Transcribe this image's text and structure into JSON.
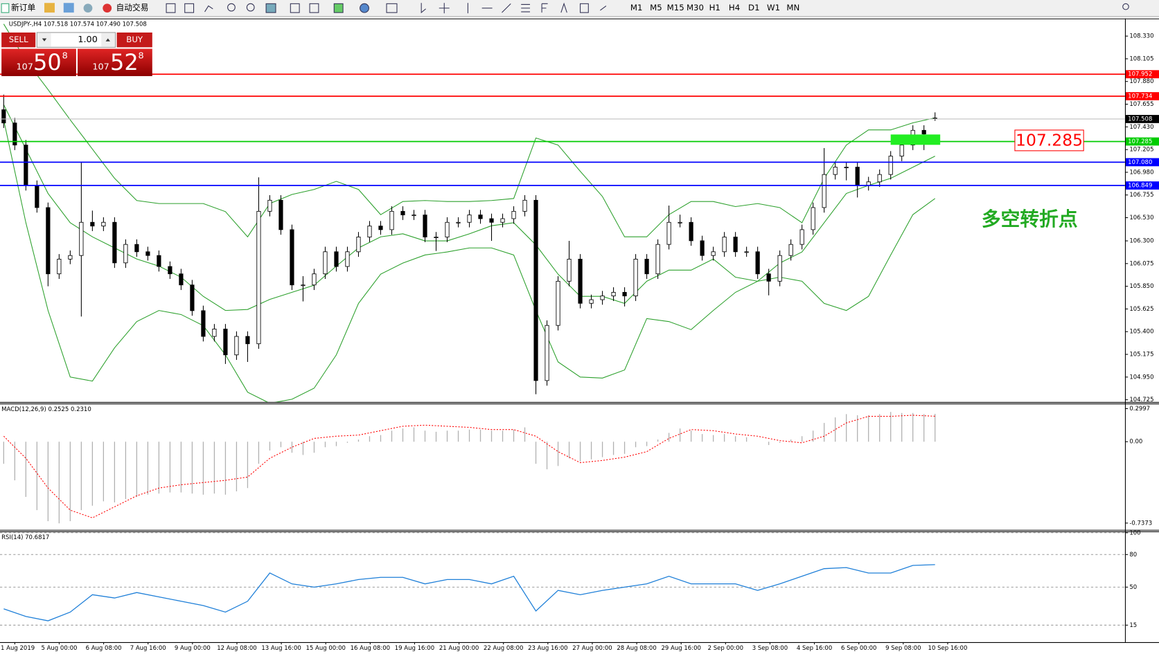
{
  "toolbar": {
    "new_order": "新订单",
    "auto_trading": "自动交易",
    "timeframes": [
      "M1",
      "M5",
      "M15",
      "M30",
      "H1",
      "H4",
      "D1",
      "W1",
      "MN"
    ]
  },
  "trade_panel": {
    "sell": "SELL",
    "buy": "BUY",
    "lots": "1.00",
    "sell_price": {
      "big": "107",
      "pips": "50",
      "point": "8"
    },
    "buy_price": {
      "big": "107",
      "pips": "52",
      "point": "8"
    }
  },
  "time_axis": {
    "labels": [
      "1 Aug 2019",
      "5 Aug 00:00",
      "6 Aug 08:00",
      "7 Aug 16:00",
      "9 Aug 00:00",
      "12 Aug 08:00",
      "13 Aug 16:00",
      "15 Aug 00:00",
      "16 Aug 08:00",
      "19 Aug 16:00",
      "21 Aug 00:00",
      "22 Aug 08:00",
      "23 Aug 16:00",
      "27 Aug 00:00",
      "28 Aug 08:00",
      "29 Aug 16:00",
      "2 Sep 00:00",
      "3 Sep 08:00",
      "4 Sep 16:00",
      "6 Sep 00:00",
      "9 Sep 08:00",
      "10 Sep 16:00"
    ]
  },
  "chart_data": [
    {
      "type": "candlestick",
      "title": "USDJPY-,H4 107.518 107.574 107.490 107.508",
      "ylim": [
        104.71,
        108.49
      ],
      "yticks": [
        {
          "value": 108.33,
          "label": "108.330"
        },
        108.105,
        {
          "value": 107.88,
          "label": "107.880"
        },
        107.655,
        {
          "value": 107.43,
          "label": "107.430"
        },
        107.205,
        {
          "value": 106.98,
          "label": "106.980"
        },
        106.755,
        {
          "value": 106.53,
          "label": "106.530"
        },
        {
          "value": 106.3,
          "label": "106.300"
        },
        106.075,
        {
          "value": 105.85,
          "label": "105.850"
        },
        105.625,
        {
          "value": 105.4,
          "label": "105.400"
        },
        105.175,
        {
          "value": 104.95,
          "label": "104.950"
        },
        104.725
      ],
      "grid": false,
      "ohlc": [
        [
          107.6,
          107.75,
          107.419,
          107.469
        ],
        [
          107.469,
          107.519,
          107.2,
          107.25
        ],
        [
          107.25,
          107.3,
          106.799,
          106.849
        ],
        [
          106.849,
          106.899,
          106.58,
          106.63
        ],
        [
          106.63,
          106.68,
          105.85,
          105.973
        ],
        [
          105.973,
          106.169,
          105.923,
          106.119
        ],
        [
          106.119,
          106.205,
          106.069,
          106.155
        ],
        [
          106.155,
          107.08,
          105.55,
          106.484
        ],
        [
          106.484,
          106.6,
          106.397,
          106.447
        ],
        [
          106.447,
          106.534,
          106.397,
          106.484
        ],
        [
          106.484,
          106.534,
          106.032,
          106.082
        ],
        [
          106.082,
          106.315,
          106.032,
          106.265
        ],
        [
          106.265,
          106.315,
          106.142,
          106.192
        ],
        [
          106.192,
          106.242,
          106.105,
          106.155
        ],
        [
          106.155,
          106.205,
          105.996,
          106.046
        ],
        [
          106.046,
          106.096,
          105.923,
          105.973
        ],
        [
          105.973,
          106.023,
          105.813,
          105.863
        ],
        [
          105.863,
          105.913,
          105.558,
          105.608
        ],
        [
          105.608,
          105.658,
          105.303,
          105.353
        ],
        [
          105.353,
          105.476,
          105.303,
          105.426
        ],
        [
          105.426,
          105.476,
          105.08,
          105.17
        ],
        [
          105.17,
          105.403,
          105.12,
          105.353
        ],
        [
          105.353,
          105.403,
          105.1,
          105.28
        ],
        [
          105.28,
          106.93,
          105.23,
          106.593
        ],
        [
          106.593,
          106.753,
          106.543,
          106.703
        ],
        [
          106.703,
          106.753,
          106.361,
          106.411
        ],
        [
          106.411,
          106.461,
          105.813,
          105.863
        ],
        [
          105.863,
          105.95,
          105.7,
          105.863
        ],
        [
          105.863,
          106.023,
          105.813,
          105.973
        ],
        [
          105.973,
          106.242,
          105.923,
          106.192
        ],
        [
          106.192,
          106.242,
          105.996,
          106.046
        ],
        [
          106.046,
          106.242,
          105.996,
          106.192
        ],
        [
          106.192,
          106.388,
          106.142,
          106.338
        ],
        [
          106.338,
          106.497,
          106.288,
          106.447
        ],
        [
          106.447,
          106.497,
          106.361,
          106.411
        ],
        [
          106.411,
          106.643,
          106.361,
          106.593
        ],
        [
          106.593,
          106.643,
          106.507,
          106.557
        ],
        [
          106.557,
          106.607,
          106.507,
          106.557
        ],
        [
          106.557,
          106.607,
          106.288,
          106.338
        ],
        [
          106.338,
          106.388,
          106.2,
          106.338
        ],
        [
          106.338,
          106.534,
          106.288,
          106.484
        ],
        [
          106.484,
          106.534,
          106.434,
          106.484
        ],
        [
          106.484,
          106.607,
          106.434,
          106.557
        ],
        [
          106.557,
          106.607,
          106.47,
          106.52
        ],
        [
          106.52,
          106.57,
          106.3,
          106.484
        ],
        [
          106.484,
          106.57,
          106.434,
          106.52
        ],
        [
          106.52,
          106.643,
          106.47,
          106.593
        ],
        [
          106.593,
          106.753,
          106.543,
          106.703
        ],
        [
          106.703,
          106.753,
          104.78,
          104.915
        ],
        [
          104.915,
          105.512,
          104.865,
          105.462
        ],
        [
          105.462,
          105.95,
          105.412,
          105.9
        ],
        [
          105.9,
          106.3,
          105.85,
          106.119
        ],
        [
          106.119,
          106.169,
          105.631,
          105.681
        ],
        [
          105.681,
          105.767,
          105.631,
          105.717
        ],
        [
          105.717,
          105.804,
          105.667,
          105.754
        ],
        [
          105.754,
          105.84,
          105.704,
          105.79
        ],
        [
          105.79,
          105.84,
          105.65,
          105.754
        ],
        [
          105.754,
          106.169,
          105.704,
          106.119
        ],
        [
          106.119,
          106.169,
          105.923,
          105.973
        ],
        [
          105.973,
          106.315,
          105.923,
          106.265
        ],
        [
          106.265,
          106.65,
          106.215,
          106.484
        ],
        [
          106.484,
          106.56,
          106.434,
          106.484
        ],
        [
          106.484,
          106.534,
          106.251,
          106.301
        ],
        [
          106.301,
          106.351,
          106.105,
          106.155
        ],
        [
          106.155,
          106.242,
          106.105,
          106.192
        ],
        [
          106.192,
          106.388,
          106.142,
          106.338
        ],
        [
          106.338,
          106.388,
          106.142,
          106.192
        ],
        [
          106.192,
          106.242,
          106.142,
          106.192
        ],
        [
          106.192,
          106.242,
          105.923,
          105.973
        ],
        [
          105.973,
          106.023,
          105.76,
          105.9
        ],
        [
          105.9,
          106.205,
          105.85,
          106.155
        ],
        [
          106.155,
          106.315,
          106.105,
          106.265
        ],
        [
          106.265,
          106.461,
          106.215,
          106.411
        ],
        [
          106.411,
          106.68,
          106.361,
          106.63
        ],
        [
          106.63,
          107.22,
          106.58,
          106.958
        ],
        [
          106.958,
          107.081,
          106.908,
          107.031
        ],
        [
          107.031,
          107.081,
          106.9,
          107.031
        ],
        [
          107.031,
          107.081,
          106.73,
          106.849
        ],
        [
          106.849,
          106.935,
          106.799,
          106.885
        ],
        [
          106.885,
          107.008,
          106.835,
          106.958
        ],
        [
          106.958,
          107.19,
          106.908,
          107.14
        ],
        [
          107.14,
          107.3,
          107.09,
          107.25
        ],
        [
          107.25,
          107.446,
          107.2,
          107.396
        ],
        [
          107.396,
          107.446,
          107.2,
          107.359
        ],
        [
          107.518,
          107.574,
          107.49,
          107.508
        ]
      ],
      "bands": {
        "color": "#2ca02c",
        "upper": [
          108.45,
          108.09,
          107.8,
          107.5,
          107.21,
          106.92,
          106.7,
          106.67,
          106.67,
          106.67,
          106.59,
          106.34,
          106.67,
          106.76,
          106.81,
          106.89,
          106.81,
          106.56,
          106.69,
          106.7,
          106.69,
          106.69,
          106.7,
          106.72,
          107.32,
          107.25,
          106.99,
          106.74,
          106.34,
          106.34,
          106.56,
          106.69,
          106.69,
          106.64,
          106.67,
          106.63,
          106.48,
          106.92,
          107.25,
          107.4,
          107.4,
          107.47,
          107.52
        ],
        "middle": [
          107.65,
          107.21,
          106.77,
          106.48,
          106.34,
          106.23,
          106.12,
          106.05,
          105.94,
          105.75,
          105.61,
          105.62,
          105.72,
          105.79,
          105.86,
          106.05,
          106.23,
          106.34,
          106.37,
          106.3,
          106.3,
          106.37,
          106.45,
          106.48,
          106.26,
          105.97,
          105.75,
          105.75,
          105.68,
          105.9,
          106.01,
          106.01,
          106.12,
          105.94,
          105.9,
          106.08,
          106.19,
          106.48,
          106.77,
          106.85,
          106.92,
          107.03,
          107.14
        ],
        "lower": [
          107.5,
          106.48,
          105.61,
          104.95,
          104.91,
          105.24,
          105.5,
          105.61,
          105.57,
          105.46,
          105.17,
          104.8,
          104.69,
          104.73,
          104.84,
          105.17,
          105.68,
          105.97,
          106.08,
          106.16,
          106.19,
          106.23,
          106.23,
          106.16,
          105.61,
          105.1,
          104.95,
          104.94,
          105.02,
          105.53,
          105.5,
          105.42,
          105.61,
          105.79,
          105.9,
          105.94,
          105.9,
          105.68,
          105.61,
          105.75,
          106.16,
          106.56,
          106.72
        ]
      },
      "levels": [
        {
          "value": 107.952,
          "color": "#ff0000"
        },
        {
          "value": 107.734,
          "color": "#ff0000"
        },
        {
          "value": 107.508,
          "color": "#c0c0c0"
        },
        {
          "value": 107.285,
          "color": "#00cc00"
        },
        {
          "value": 107.08,
          "label": "107.080",
          "color": "#0000ff"
        },
        {
          "value": 106.849,
          "color": "#0000ff"
        }
      ],
      "annotations": [
        {
          "text": "107.285",
          "color": "#ff0000"
        },
        {
          "text": "多空转折点",
          "color": "#22aa22"
        }
      ]
    },
    {
      "type": "macd",
      "title": "MACD(12,26,9) 0.2525 0.2310",
      "color": "#b0b0b0",
      "signal_color": "#ff0000",
      "ylim": [
        -0.792,
        0.333
      ],
      "yticks": [
        0.2997,
        {
          "value": 0,
          "label": "0.00"
        },
        -0.7373
      ],
      "grid": false,
      "values": [
        -0.2,
        -0.35,
        -0.5,
        -0.62,
        -0.72,
        -0.74,
        -0.72,
        -0.62,
        -0.58,
        -0.54,
        -0.55,
        -0.52,
        -0.5,
        -0.48,
        -0.47,
        -0.46,
        -0.46,
        -0.47,
        -0.48,
        -0.47,
        -0.48,
        -0.45,
        -0.42,
        -0.2,
        -0.08,
        -0.05,
        -0.1,
        -0.12,
        -0.1,
        -0.05,
        -0.04,
        -0.01,
        0.02,
        0.05,
        0.06,
        0.1,
        0.12,
        0.13,
        0.1,
        0.09,
        0.1,
        0.1,
        0.11,
        0.11,
        0.1,
        0.1,
        0.11,
        0.13,
        -0.2,
        -0.25,
        -0.22,
        -0.15,
        -0.18,
        -0.16,
        -0.14,
        -0.12,
        -0.11,
        -0.05,
        -0.04,
        0.02,
        0.08,
        0.12,
        0.1,
        0.07,
        0.06,
        0.07,
        0.05,
        0.04,
        0.0,
        -0.03,
        -0.01,
        0.02,
        0.05,
        0.1,
        0.17,
        0.22,
        0.25,
        0.24,
        0.24,
        0.25,
        0.27,
        0.26,
        0.26,
        0.25,
        0.2525
      ],
      "signal": [
        0.05,
        -0.15,
        -0.42,
        -0.62,
        -0.69,
        -0.59,
        -0.49,
        -0.42,
        -0.39,
        -0.37,
        -0.35,
        -0.32,
        -0.15,
        -0.05,
        0.03,
        0.05,
        0.06,
        0.1,
        0.14,
        0.15,
        0.14,
        0.13,
        0.11,
        0.11,
        0.05,
        -0.09,
        -0.19,
        -0.17,
        -0.14,
        -0.09,
        0.03,
        0.11,
        0.1,
        0.07,
        0.05,
        0.01,
        -0.01,
        0.05,
        0.17,
        0.23,
        0.23,
        0.24,
        0.231
      ]
    },
    {
      "type": "rsi",
      "title": "RSI(14) 70.6817",
      "color": "#1e7fd8",
      "ylim": [
        0,
        100
      ],
      "yticks": [
        100,
        80,
        50,
        15
      ],
      "grid": true,
      "values": [
        30,
        23,
        19,
        27,
        43,
        40,
        45,
        41,
        37,
        33,
        27,
        37,
        63,
        53,
        50,
        53,
        57,
        59,
        59,
        53,
        57,
        57,
        53,
        60,
        28,
        47,
        43,
        47,
        50,
        53,
        60,
        53,
        53,
        53,
        47,
        53,
        60,
        67,
        68,
        63,
        63,
        70,
        70.6817
      ]
    }
  ]
}
